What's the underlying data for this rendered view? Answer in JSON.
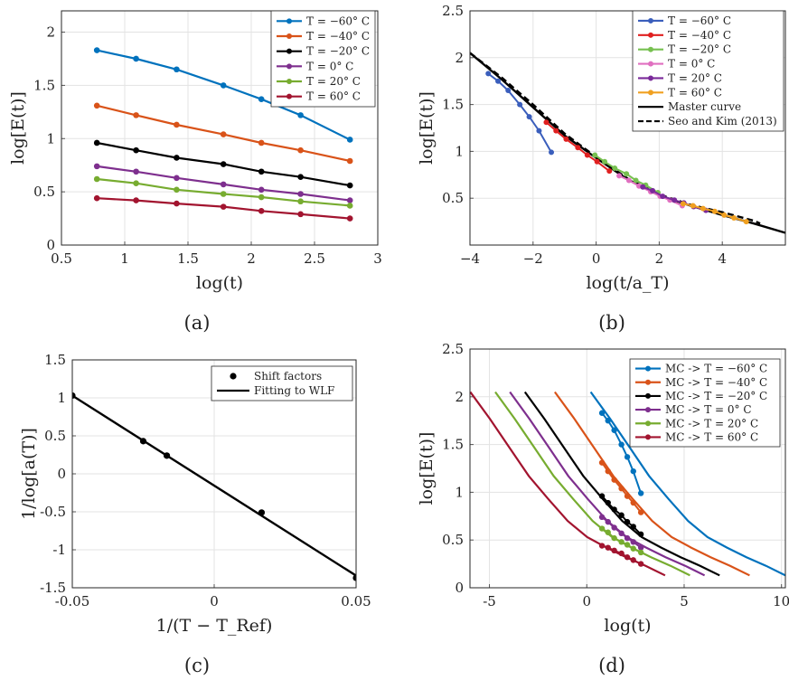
{
  "figure": {
    "captions": [
      "(a)",
      "(b)",
      "(c)",
      "(d)"
    ]
  },
  "chart_data": [
    {
      "type": "line",
      "panel": "a",
      "xlabel": "log(t)",
      "ylabel": "log[E(t)]",
      "xlim": [
        0.5,
        3
      ],
      "ylim": [
        0,
        2.2
      ],
      "xticks": [
        0.5,
        1,
        1.5,
        2,
        2.5,
        3
      ],
      "yticks": [
        0,
        0.5,
        1,
        1.5,
        2
      ],
      "xtick_labels": [
        "0.5",
        "1",
        "1.5",
        "2",
        "2.5",
        "3"
      ],
      "ytick_labels": [
        "0",
        "0.5",
        "1",
        "1.5",
        "2"
      ],
      "grid": true,
      "legend_position": "top-right",
      "x": [
        0.78,
        1.09,
        1.41,
        1.78,
        2.08,
        2.39,
        2.78
      ],
      "series": [
        {
          "name": "T = −60° C",
          "color": "#0072bd",
          "values": [
            1.83,
            1.75,
            1.65,
            1.5,
            1.37,
            1.22,
            0.99
          ]
        },
        {
          "name": "T = −40° C",
          "color": "#d95319",
          "values": [
            1.31,
            1.22,
            1.13,
            1.04,
            0.96,
            0.89,
            0.79
          ]
        },
        {
          "name": "T = −20° C",
          "color": "#000000",
          "values": [
            0.96,
            0.89,
            0.82,
            0.76,
            0.69,
            0.64,
            0.56
          ]
        },
        {
          "name": "T = 0° C",
          "color": "#7e2f8e",
          "values": [
            0.74,
            0.69,
            0.63,
            0.57,
            0.52,
            0.48,
            0.42
          ]
        },
        {
          "name": "T = 20° C",
          "color": "#77ac30",
          "values": [
            0.62,
            0.58,
            0.52,
            0.48,
            0.45,
            0.41,
            0.37
          ]
        },
        {
          "name": "T = 60° C",
          "color": "#a2142f",
          "values": [
            0.44,
            0.42,
            0.39,
            0.36,
            0.32,
            0.29,
            0.25
          ]
        }
      ]
    },
    {
      "type": "line",
      "panel": "b",
      "xlabel": "log(t/a_T)",
      "ylabel": "log[E(t)]",
      "xlim": [
        -4,
        6
      ],
      "ylim": [
        0,
        2.5
      ],
      "xticks": [
        -4,
        -2,
        0,
        2,
        4
      ],
      "yticks": [
        0.5,
        1,
        1.5,
        2,
        2.5
      ],
      "xtick_labels": [
        "−4",
        "−2",
        "0",
        "2",
        "4"
      ],
      "ytick_labels": [
        "0.5",
        "1",
        "1.5",
        "2",
        "2.5"
      ],
      "grid": true,
      "legend_position": "top-right",
      "series": [
        {
          "name": "T = −60° C",
          "color": "#3a5ebc",
          "x": [
            -3.42,
            -3.11,
            -2.79,
            -2.42,
            -2.12,
            -1.81,
            -1.42
          ],
          "values": [
            1.83,
            1.75,
            1.65,
            1.5,
            1.37,
            1.22,
            0.99
          ]
        },
        {
          "name": "T = −40° C",
          "color": "#e02020",
          "x": [
            -1.58,
            -1.27,
            -0.95,
            -0.58,
            -0.28,
            0.03,
            0.42
          ],
          "values": [
            1.31,
            1.22,
            1.13,
            1.04,
            0.96,
            0.89,
            0.79
          ]
        },
        {
          "name": "T = −20° C",
          "color": "#77c050",
          "x": [
            -0.04,
            0.27,
            0.59,
            0.96,
            1.26,
            1.57,
            1.96
          ],
          "values": [
            0.96,
            0.89,
            0.82,
            0.76,
            0.69,
            0.64,
            0.56
          ]
        },
        {
          "name": "T = 0° C",
          "color": "#e070c0",
          "x": [
            0.73,
            1.04,
            1.36,
            1.73,
            2.03,
            2.34,
            2.73
          ],
          "values": [
            0.74,
            0.69,
            0.63,
            0.57,
            0.52,
            0.48,
            0.42
          ]
        },
        {
          "name": "T = 20° C",
          "color": "#7a2a9a",
          "x": [
            1.48,
            1.79,
            2.11,
            2.48,
            2.78,
            3.09,
            3.48
          ],
          "values": [
            0.62,
            0.58,
            0.52,
            0.48,
            0.45,
            0.41,
            0.37
          ]
        },
        {
          "name": "T = 60° C",
          "color": "#f0a020",
          "x": [
            2.76,
            3.07,
            3.39,
            3.76,
            4.06,
            4.37,
            4.76
          ],
          "values": [
            0.44,
            0.42,
            0.39,
            0.36,
            0.32,
            0.29,
            0.25
          ]
        },
        {
          "name": "Master curve",
          "color": "#000000",
          "style": "solid",
          "x": [
            -4,
            -3,
            -2,
            -1,
            0,
            1,
            2,
            3,
            4,
            5,
            6
          ],
          "values": [
            2.05,
            1.77,
            1.47,
            1.17,
            0.93,
            0.7,
            0.53,
            0.42,
            0.32,
            0.23,
            0.13
          ]
        },
        {
          "name": "Seo and Kim (2013)",
          "color": "#000000",
          "style": "dashed",
          "x": [
            -4,
            -3,
            -2,
            -1,
            0,
            1,
            2,
            3,
            4,
            5,
            5.2
          ],
          "values": [
            2.05,
            1.79,
            1.5,
            1.19,
            0.94,
            0.71,
            0.54,
            0.43,
            0.35,
            0.26,
            0.23
          ]
        }
      ]
    },
    {
      "type": "scatter",
      "panel": "c",
      "xlabel": "1/(T − T_Ref)",
      "ylabel": "1/log[a(T)]",
      "xlim": [
        -0.05,
        0.05
      ],
      "ylim": [
        -1.5,
        1.5
      ],
      "xticks": [
        -0.05,
        0,
        0.05
      ],
      "yticks": [
        -1.5,
        -1,
        -0.5,
        0,
        0.5,
        1,
        1.5
      ],
      "xtick_labels": [
        "-0.05",
        "0",
        "0.05"
      ],
      "ytick_labels": [
        "-1.5",
        "-1",
        "-0.5",
        "0",
        "0.5",
        "1",
        "1.5"
      ],
      "grid": true,
      "legend_position": "top-right",
      "series": [
        {
          "name": "Shift factors",
          "color": "#000000",
          "marker": "dot",
          "x": [
            -0.05,
            -0.025,
            -0.0167,
            0.0167,
            0.05
          ],
          "values": [
            1.03,
            0.43,
            0.24,
            -0.51,
            -1.37
          ]
        },
        {
          "name": "Fitting to WLF",
          "color": "#000000",
          "style": "solid",
          "x": [
            -0.05,
            0.05
          ],
          "values": [
            1.03,
            -1.34
          ]
        }
      ]
    },
    {
      "type": "line",
      "panel": "d",
      "xlabel": "log(t)",
      "ylabel": "log[E(t)]",
      "xlim": [
        -6,
        10.2
      ],
      "ylim": [
        0,
        2.5
      ],
      "xticks": [
        -5,
        0,
        5,
        10
      ],
      "yticks": [
        0,
        0.5,
        1,
        1.5,
        2,
        2.5
      ],
      "xtick_labels": [
        "-5",
        "0",
        "5",
        "10"
      ],
      "ytick_labels": [
        "0",
        "0.5",
        "1",
        "1.5",
        "2",
        "2.5"
      ],
      "grid": true,
      "legend_position": "top-right",
      "point_x": [
        0.78,
        1.09,
        1.41,
        1.78,
        2.08,
        2.39,
        2.78
      ],
      "series": [
        {
          "name": "MC -> T = −60° C",
          "color": "#0072bd",
          "shift": 4.2,
          "points": [
            1.83,
            1.75,
            1.65,
            1.5,
            1.37,
            1.22,
            0.99
          ]
        },
        {
          "name": "MC -> T = −40° C",
          "color": "#d95319",
          "shift": 2.36,
          "points": [
            1.31,
            1.22,
            1.13,
            1.04,
            0.96,
            0.89,
            0.79
          ]
        },
        {
          "name": "MC -> T = −20° C",
          "color": "#000000",
          "shift": 0.82,
          "points": [
            0.96,
            0.89,
            0.82,
            0.76,
            0.69,
            0.64,
            0.56
          ]
        },
        {
          "name": "MC -> T = 0° C",
          "color": "#7e2f8e",
          "shift": 0.05,
          "points": [
            0.74,
            0.69,
            0.63,
            0.57,
            0.52,
            0.48,
            0.42
          ]
        },
        {
          "name": "MC -> T = 20° C",
          "color": "#77ac30",
          "shift": -0.7,
          "points": [
            0.62,
            0.58,
            0.52,
            0.48,
            0.45,
            0.41,
            0.37
          ]
        },
        {
          "name": "MC -> T = 60° C",
          "color": "#a2142f",
          "shift": -1.98,
          "points": [
            0.44,
            0.42,
            0.39,
            0.36,
            0.32,
            0.29,
            0.25
          ]
        }
      ],
      "master_curve": {
        "x": [
          -4,
          -3,
          -2,
          -1,
          0,
          1,
          2,
          3,
          4,
          5,
          6
        ],
        "values": [
          2.05,
          1.77,
          1.47,
          1.17,
          0.93,
          0.7,
          0.53,
          0.42,
          0.32,
          0.23,
          0.13
        ]
      }
    }
  ]
}
